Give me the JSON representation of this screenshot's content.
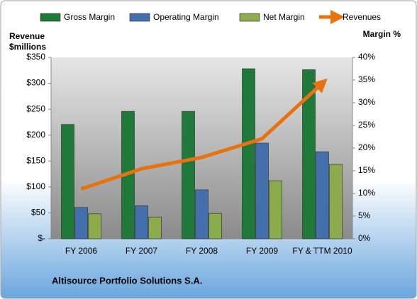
{
  "chart_data": {
    "type": "bar-line",
    "title": "Altisource Portfolio Solutions S.A.",
    "y_label": [
      "Revenue",
      "$millions"
    ],
    "y2_label": "Margin  %",
    "categories": [
      "FY 2006",
      "FY 2007",
      "FY 2008",
      "FY 2009",
      "FY & TTM 2010"
    ],
    "series": [
      {
        "name": "Gross Margin",
        "color": "#1f7a3a",
        "type": "bar",
        "axis": "y2",
        "values": [
          25.2,
          28.1,
          28.1,
          37.5,
          37.3
        ]
      },
      {
        "name": "Operating Margin",
        "color": "#4370ad",
        "type": "bar",
        "axis": "y2",
        "values": [
          6.9,
          7.3,
          10.8,
          21.1,
          19.2
        ]
      },
      {
        "name": "Net Margin",
        "color": "#8cab4c",
        "type": "bar",
        "axis": "y2",
        "values": [
          5.5,
          4.8,
          5.6,
          12.8,
          16.4
        ]
      },
      {
        "name": "Revenues",
        "color": "#e8720f",
        "type": "line",
        "axis": "y",
        "values": [
          96,
          135,
          157,
          193,
          300
        ]
      }
    ],
    "ylim": [
      0,
      350
    ],
    "yticks": [
      {
        "value": 0,
        "label": "$-"
      },
      {
        "value": 50,
        "label": "$50"
      },
      {
        "value": 100,
        "label": "$100"
      },
      {
        "value": 150,
        "label": "$150"
      },
      {
        "value": 200,
        "label": "$200"
      },
      {
        "value": 250,
        "label": "$250"
      },
      {
        "value": 300,
        "label": "$300"
      },
      {
        "value": 350,
        "label": "$350"
      }
    ],
    "y2lim": [
      0,
      40
    ],
    "y2ticks": [
      {
        "value": 0,
        "label": "0%"
      },
      {
        "value": 5,
        "label": "5%"
      },
      {
        "value": 10,
        "label": "10%"
      },
      {
        "value": 15,
        "label": "15%"
      },
      {
        "value": 20,
        "label": "20%"
      },
      {
        "value": 25,
        "label": "25%"
      },
      {
        "value": 30,
        "label": "30%"
      },
      {
        "value": 35,
        "label": "35%"
      },
      {
        "value": 40,
        "label": "40%"
      }
    ],
    "grid": false,
    "legend": "top"
  }
}
